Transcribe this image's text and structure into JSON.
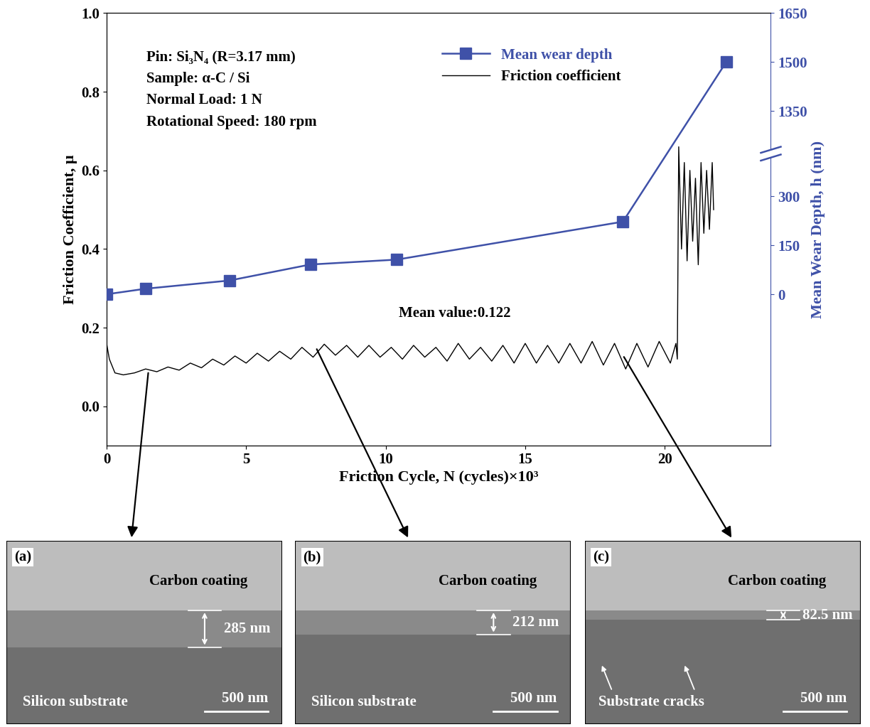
{
  "chart_data": {
    "type": "line",
    "xlabel": "Friction Cycle, N (cycles)×10³",
    "ylabel": "Friction Coefficient, μ",
    "y2label": "Mean Wear Depth, h (nm)",
    "xlim": [
      0,
      23.8
    ],
    "xticks": [
      0,
      5,
      10,
      15,
      20
    ],
    "ylim": [
      -0.1,
      1.0
    ],
    "yticks": [
      0.0,
      0.2,
      0.4,
      0.6,
      0.8,
      1.0
    ],
    "y2lim": [
      -463,
      1650
    ],
    "y2ticks": [
      0,
      150,
      300,
      1350,
      1500,
      1650
    ],
    "y2_break": [
      420,
      1230
    ],
    "legend": "upper center",
    "conditions": [
      "Pin: Si₃N₄ (R=3.17 mm)",
      "Sample: α-C / Si",
      "Normal Load: 1 N",
      "Rotational Speed: 180 rpm"
    ],
    "mean_label": "Mean value:0.122",
    "series": [
      {
        "name": "Mean wear depth",
        "color": "#3f51a8",
        "marker": "s",
        "axis": "y2",
        "x": [
          0,
          1.4,
          4.4,
          7.3,
          10.4,
          18.5,
          22.2
        ],
        "values": [
          0,
          17,
          42,
          91,
          106,
          222,
          1500
        ]
      },
      {
        "name": "Friction coefficient",
        "color": "#000000",
        "axis": "y",
        "x": [
          0,
          0.1,
          0.3,
          0.6,
          1.0,
          1.4,
          1.8,
          2.2,
          2.6,
          3.0,
          3.4,
          3.8,
          4.2,
          4.6,
          5.0,
          5.4,
          5.8,
          6.2,
          6.6,
          7.0,
          7.4,
          7.8,
          8.2,
          8.6,
          9.0,
          9.4,
          9.8,
          10.2,
          10.6,
          11.0,
          11.4,
          11.8,
          12.2,
          12.6,
          13.0,
          13.4,
          13.8,
          14.2,
          14.6,
          15.0,
          15.4,
          15.8,
          16.2,
          16.6,
          17.0,
          17.4,
          17.8,
          18.2,
          18.6,
          19.0,
          19.4,
          19.8,
          20.2,
          20.4,
          20.45,
          20.5,
          20.6,
          20.7,
          20.8,
          20.9,
          21.0,
          21.1,
          21.2,
          21.3,
          21.4,
          21.5,
          21.6,
          21.7,
          21.75
        ],
        "values": [
          0.16,
          0.12,
          0.085,
          0.08,
          0.085,
          0.095,
          0.088,
          0.1,
          0.092,
          0.11,
          0.098,
          0.12,
          0.105,
          0.128,
          0.11,
          0.135,
          0.115,
          0.14,
          0.12,
          0.15,
          0.125,
          0.158,
          0.13,
          0.155,
          0.125,
          0.155,
          0.125,
          0.15,
          0.12,
          0.155,
          0.125,
          0.15,
          0.115,
          0.16,
          0.12,
          0.15,
          0.115,
          0.155,
          0.11,
          0.16,
          0.11,
          0.155,
          0.11,
          0.16,
          0.11,
          0.165,
          0.105,
          0.16,
          0.095,
          0.16,
          0.1,
          0.165,
          0.11,
          0.16,
          0.12,
          0.66,
          0.4,
          0.62,
          0.37,
          0.6,
          0.42,
          0.58,
          0.36,
          0.62,
          0.44,
          0.6,
          0.45,
          0.62,
          0.5
        ]
      }
    ],
    "panels": [
      {
        "label": "(a)",
        "coating": "Carbon coating",
        "thickness": "285 nm",
        "substrate": "Silicon substrate",
        "scale_bar": "500 nm",
        "at": {
          "x": 1.5,
          "y": 0.09
        }
      },
      {
        "label": "(b)",
        "coating": "Carbon coating",
        "thickness": "212 nm",
        "substrate": "Silicon substrate",
        "scale_bar": "500 nm",
        "at": {
          "x": 7.5,
          "y": 0.15
        }
      },
      {
        "label": "(c)",
        "coating": "Carbon coating",
        "thickness": "82.5 nm",
        "cracks": "Substrate cracks",
        "scale_bar": "500 nm",
        "at": {
          "x": 18.5,
          "y": 0.13
        }
      }
    ]
  }
}
